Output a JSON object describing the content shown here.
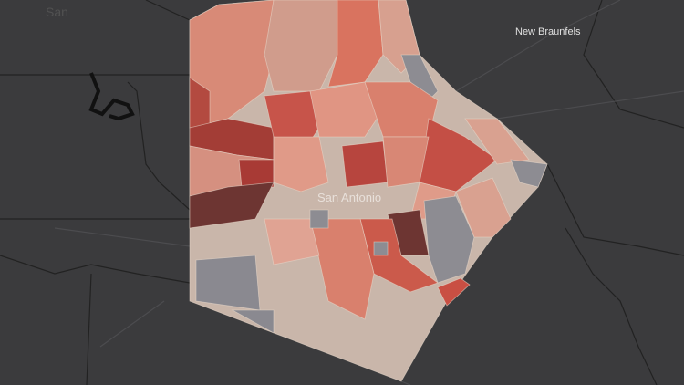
{
  "labels": {
    "city_1": "New Braunfels",
    "city_2": "San Antonio"
  }
}
